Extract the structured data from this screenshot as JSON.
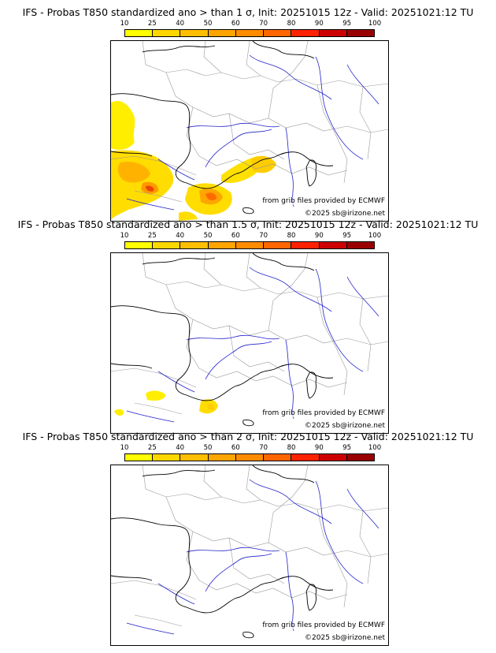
{
  "colorbar": {
    "ticks": [
      "10",
      "25",
      "40",
      "50",
      "60",
      "70",
      "80",
      "90",
      "95",
      "100"
    ],
    "colors": [
      "#ffff00",
      "#ffd700",
      "#ffbf00",
      "#ffa500",
      "#ff8c00",
      "#ff6600",
      "#ff2200",
      "#cc0000",
      "#990000"
    ]
  },
  "panels": [
    {
      "title": "IFS - Probas T850  standardized ano > than 1 σ, Init: 20251015 12z - Valid: 20251021:12 TU",
      "source": "from grib files provided by ECMWF",
      "copyright": "©2025 sb@irizone.net"
    },
    {
      "title": "IFS - Probas T850  standardized ano > than 1.5 σ, Init: 20251015 12z - Valid: 20251021:12 TU",
      "source": "from grib files provided by ECMWF",
      "copyright": "©2025 sb@irizone.net"
    },
    {
      "title": "IFS - Probas T850  standardized ano > than 2 σ, Init: 20251015 12z - Valid: 20251021:12 TU",
      "source": "from grib files provided by ECMWF",
      "copyright": "©2025 sb@irizone.net"
    }
  ],
  "coast_color": "#000000",
  "river_color": "#2222cc",
  "border_color": "#999999"
}
